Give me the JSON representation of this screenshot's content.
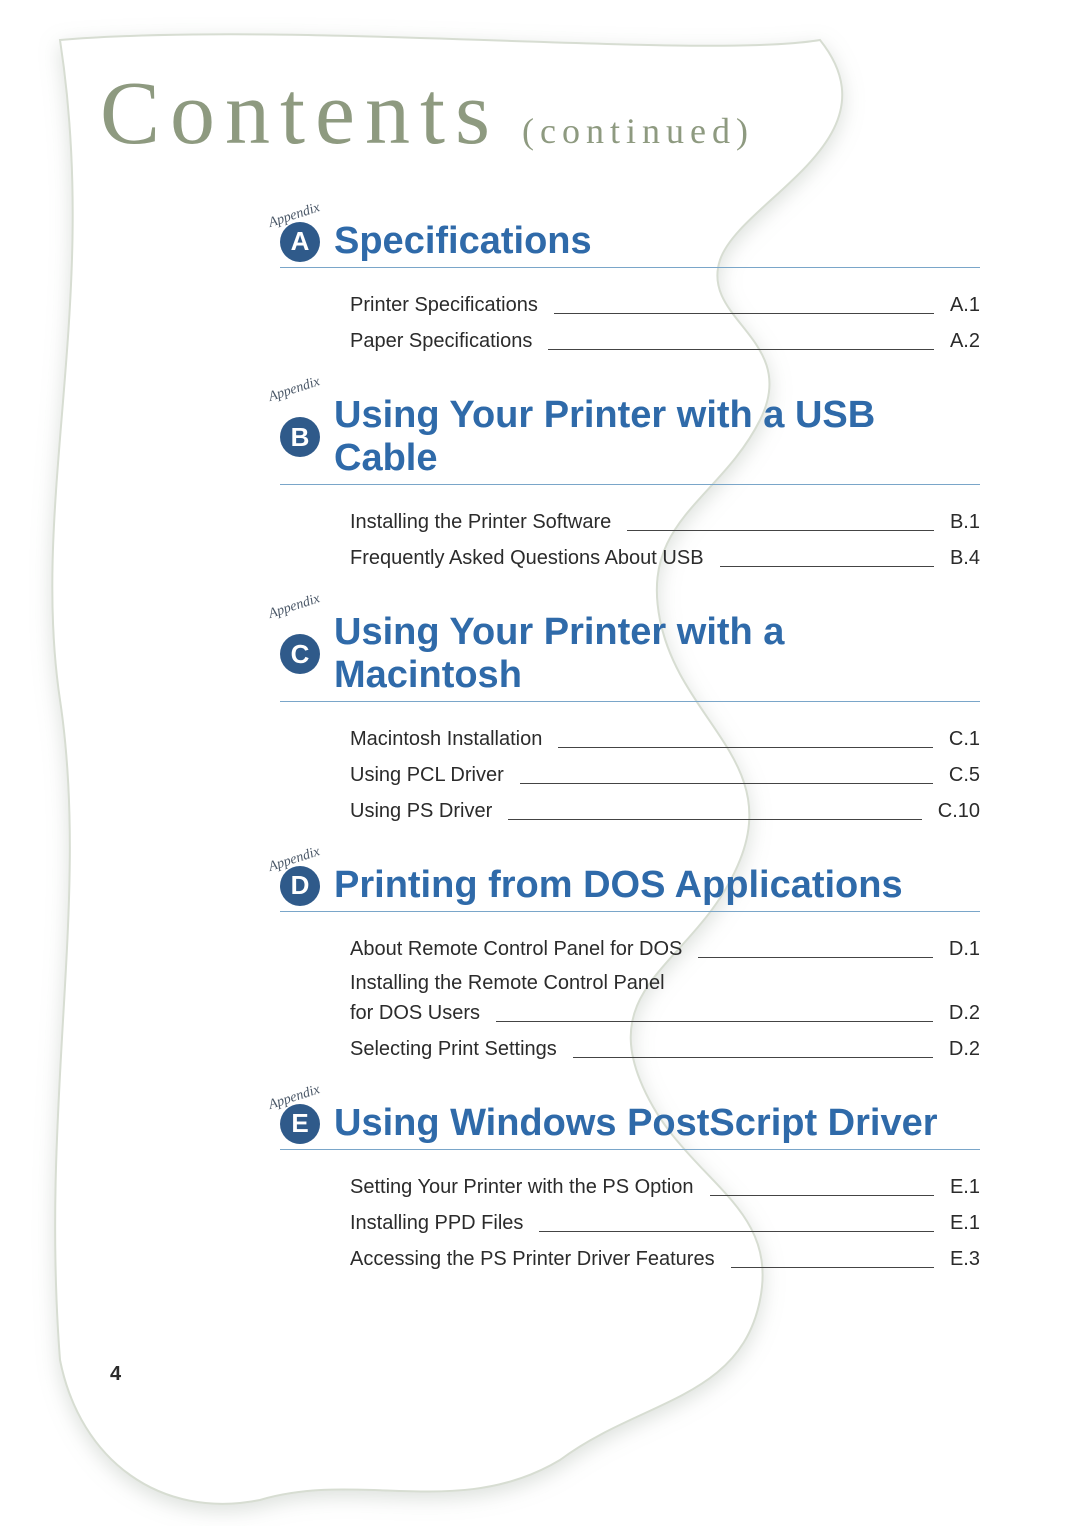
{
  "title": {
    "main": "Contents",
    "continued": "(continued)"
  },
  "appendix_label": "Appendix",
  "colors": {
    "title_color": "#8e9a80",
    "section_title": "#2f6aa9",
    "badge_bg": "#2f5a8a",
    "badge_fg": "#ffffff",
    "rule": "#7aa6c9",
    "text": "#2b2b2b"
  },
  "sections": [
    {
      "letter": "A",
      "title": "Specifications",
      "entries": [
        {
          "text": "Printer Specifications",
          "page": "A.1"
        },
        {
          "text": "Paper Specifications",
          "page": "A.2"
        }
      ]
    },
    {
      "letter": "B",
      "title": "Using Your Printer with a USB Cable",
      "entries": [
        {
          "text": "Installing the Printer Software",
          "page": "B.1"
        },
        {
          "text": "Frequently Asked Questions About USB",
          "page": "B.4"
        }
      ]
    },
    {
      "letter": "C",
      "title": "Using Your Printer with a Macintosh",
      "entries": [
        {
          "text": "Macintosh Installation",
          "page": "C.1"
        },
        {
          "text": "Using PCL Driver",
          "page": "C.5"
        },
        {
          "text": "Using PS Driver",
          "page": "C.10"
        }
      ]
    },
    {
      "letter": "D",
      "title": "Printing from DOS Applications",
      "entries": [
        {
          "text": "About Remote Control Panel for DOS",
          "page": "D.1"
        },
        {
          "text_line1": "Installing the Remote Control Panel",
          "text": "for DOS Users",
          "page": "D.2",
          "multiline": true
        },
        {
          "text": "Selecting Print Settings",
          "page": "D.2"
        }
      ]
    },
    {
      "letter": "E",
      "title": "Using Windows PostScript Driver",
      "entries": [
        {
          "text": "Setting Your Printer with the PS Option",
          "page": "E.1"
        },
        {
          "text": "Installing PPD Files",
          "page": "E.1"
        },
        {
          "text": "Accessing the PS Printer Driver Features",
          "page": "E.3"
        }
      ]
    }
  ],
  "page_number": "4"
}
